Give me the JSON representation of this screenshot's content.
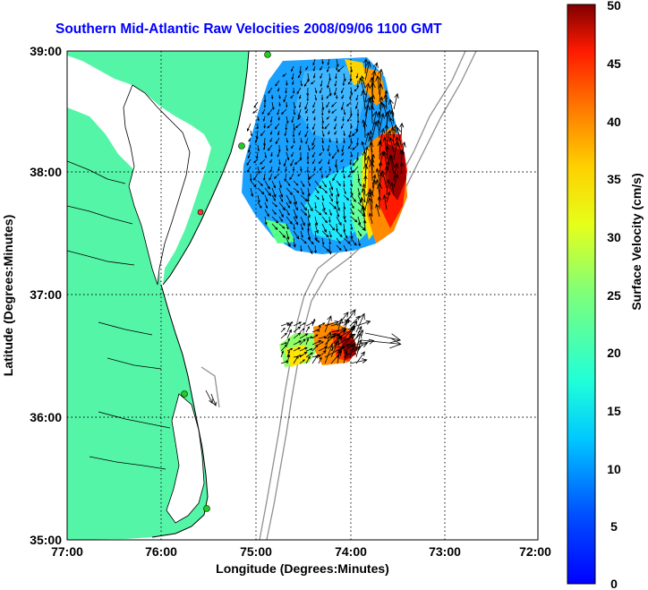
{
  "title": "Southern Mid-Atlantic Raw Velocities 2008/09/06 1100 GMT",
  "xlabel": "Longitude (Degrees:Minutes)",
  "ylabel": "Latitude (Degrees:Minutes)",
  "x_ticks": [
    "77:00",
    "76:00",
    "75:00",
    "74:00",
    "73:00",
    "72:00"
  ],
  "y_ticks": [
    "39:00",
    "38:00",
    "37:00",
    "36:00",
    "35:00"
  ],
  "colorbar": {
    "label": "Surface Velocity (cm/s)",
    "ticks": [
      "50",
      "45",
      "40",
      "35",
      "30",
      "25",
      "20",
      "15",
      "10",
      "5",
      "0"
    ],
    "range": [
      0,
      50
    ],
    "colormap": "jet"
  },
  "colors": {
    "land": "#55f5a8",
    "coast_lines": "#000000",
    "bathymetry": "#909090",
    "grid": "#000000",
    "stations": "#22cc22",
    "station_highlight": "#ff3333",
    "title": "#0000ff"
  },
  "map": {
    "lon_range": [
      -77,
      -72
    ],
    "lat_range": [
      35,
      39
    ],
    "grid": "dotted"
  },
  "icons": {
    "vectors": "arrow-icon",
    "stations": "station-dot-icon"
  }
}
